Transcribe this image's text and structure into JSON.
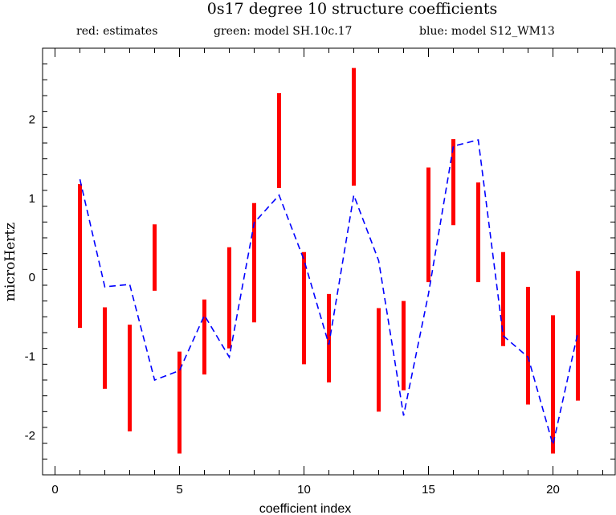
{
  "chart_data": {
    "type": "errorbar",
    "title": "0s17 degree 10 structure coefficients",
    "xlabel": "coefficient index",
    "ylabel": "microHertz",
    "xlim": [
      -0.5,
      22.5
    ],
    "ylim": [
      -2.5,
      2.9
    ],
    "x_ticks": [
      0,
      5,
      10,
      15,
      20
    ],
    "y_ticks": [
      -2,
      -1,
      0,
      1,
      2
    ],
    "x_minor_step": 1,
    "y_minor_step": 0.2,
    "legend": {
      "placement": "top",
      "entries": [
        {
          "label": "red: estimates",
          "color": "#ff0000"
        },
        {
          "label": "green: model SH.10c.17",
          "color": "#00ff00"
        },
        {
          "label": "blue: model S12_WM13",
          "color": "#0000ff"
        }
      ]
    },
    "series": [
      {
        "name": "estimates",
        "style": "vertical-bars",
        "color": "#ff0000",
        "x": [
          1,
          2,
          3,
          4,
          5,
          6,
          7,
          8,
          9,
          10,
          11,
          12,
          13,
          14,
          15,
          16,
          17,
          18,
          19,
          20,
          21
        ],
        "low": [
          -0.64,
          -1.41,
          -1.95,
          -0.17,
          -2.23,
          -1.23,
          -0.9,
          -0.57,
          1.13,
          -1.1,
          -1.33,
          1.16,
          -1.7,
          -1.43,
          -0.06,
          0.66,
          -0.06,
          -0.87,
          -1.61,
          -2.23,
          -1.56
        ],
        "high": [
          1.18,
          -0.38,
          -0.6,
          0.67,
          -0.94,
          -0.28,
          0.38,
          0.94,
          2.33,
          0.32,
          -0.21,
          2.65,
          -0.39,
          -0.3,
          1.39,
          1.75,
          1.2,
          0.32,
          -0.12,
          -0.48,
          0.08
        ]
      },
      {
        "name": "model S12_WM13",
        "style": "dashed-line",
        "color": "#0000ff",
        "x": [
          1,
          2,
          3,
          4,
          5,
          6,
          7,
          8,
          9,
          10,
          11,
          12,
          13,
          14,
          15,
          16,
          17,
          18,
          19,
          20,
          21
        ],
        "values": [
          1.24,
          -0.12,
          -0.09,
          -1.3,
          -1.18,
          -0.48,
          -1.01,
          0.69,
          1.04,
          0.22,
          -0.85,
          1.04,
          0.21,
          -1.75,
          -0.21,
          1.66,
          1.74,
          -0.74,
          -1.01,
          -2.12,
          -0.7
        ]
      }
    ]
  }
}
